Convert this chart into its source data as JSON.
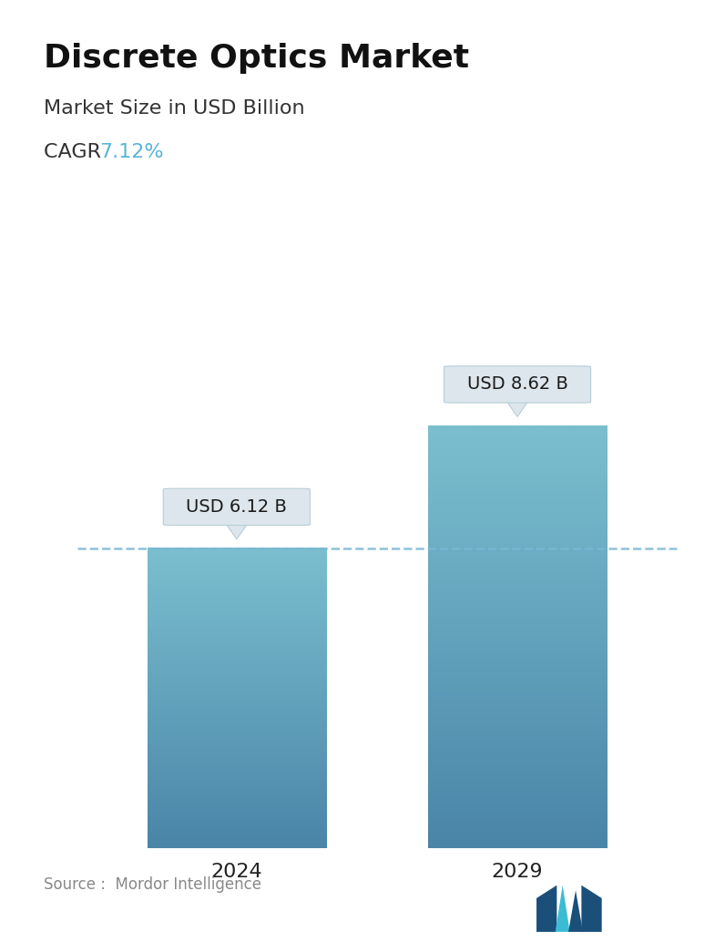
{
  "title": "Discrete Optics Market",
  "subtitle": "Market Size in USD Billion",
  "cagr_label": "CAGR ",
  "cagr_value": "7.12%",
  "cagr_color": "#5ab4d6",
  "categories": [
    "2024",
    "2029"
  ],
  "values": [
    6.12,
    8.62
  ],
  "bar_labels": [
    "USD 6.12 B",
    "USD 8.62 B"
  ],
  "bar_top_color": "#7bbfcf",
  "bar_bottom_color": "#4a85a8",
  "dashed_line_color": "#7ab8d4",
  "dashed_line_value": 6.12,
  "source_text": "Source :  Mordor Intelligence",
  "source_color": "#888888",
  "bg_color": "#ffffff",
  "title_fontsize": 26,
  "subtitle_fontsize": 16,
  "cagr_fontsize": 16,
  "bar_label_fontsize": 14,
  "xlabel_fontsize": 16,
  "source_fontsize": 12,
  "ylim": [
    0,
    10.0
  ],
  "bar_width": 0.28,
  "x_positions": [
    0.28,
    0.72
  ]
}
